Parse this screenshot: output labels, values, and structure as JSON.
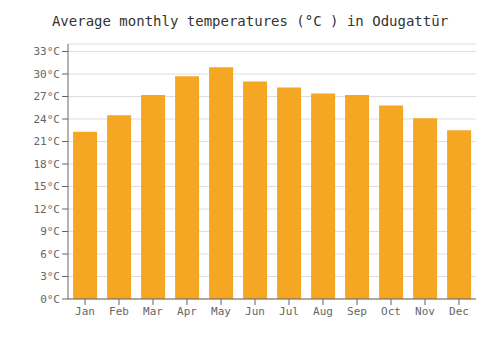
{
  "chart_data": {
    "type": "bar",
    "title": "Average monthly temperatures (°C ) in Odugattūr",
    "categories": [
      "Jan",
      "Feb",
      "Mar",
      "Apr",
      "May",
      "Jun",
      "Jul",
      "Aug",
      "Sep",
      "Oct",
      "Nov",
      "Dec"
    ],
    "values": [
      22.3,
      24.5,
      27.2,
      29.7,
      30.9,
      29.0,
      28.2,
      27.4,
      27.2,
      25.8,
      24.1,
      22.5
    ],
    "color": "#F5A623",
    "ylim": [
      0,
      34
    ],
    "yticks": [
      {
        "value": 0,
        "label": "0°C"
      },
      {
        "value": 3,
        "label": "3°C"
      },
      {
        "value": 6,
        "label": "6°C"
      },
      {
        "value": 9,
        "label": "9°C"
      },
      {
        "value": 12,
        "label": "12°C"
      },
      {
        "value": 15,
        "label": "15°C"
      },
      {
        "value": 18,
        "label": "18°C"
      },
      {
        "value": 21,
        "label": "21°C"
      },
      {
        "value": 24,
        "label": "24°C"
      },
      {
        "value": 27,
        "label": "27°C"
      },
      {
        "value": 30,
        "label": "30°C"
      },
      {
        "value": 33,
        "label": "33°C"
      }
    ],
    "grid": true
  }
}
